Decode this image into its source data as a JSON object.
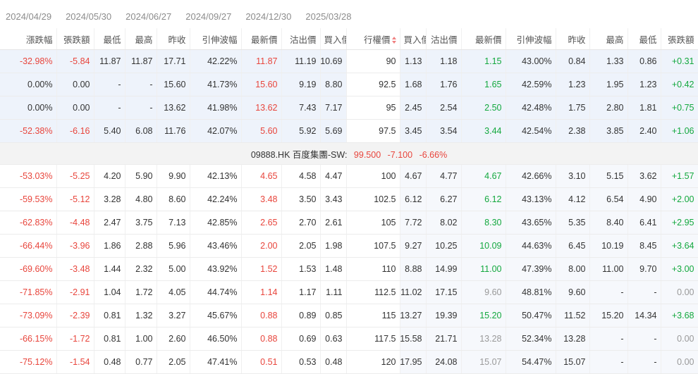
{
  "expiry_tabs": [
    "2024/04/29",
    "2024/05/30",
    "2024/06/27",
    "2024/09/27",
    "2024/12/30",
    "2025/03/28"
  ],
  "headers": {
    "call": [
      "漲跌幅",
      "張跌額",
      "最低",
      "最高",
      "昨收",
      "引伸波幅",
      "最新價",
      "沽出價",
      "買入價"
    ],
    "strike": "行權價",
    "put": [
      "買入價",
      "沽出價",
      "最新價",
      "引伸波幅",
      "昨收",
      "最高",
      "最低",
      "張跌額"
    ]
  },
  "spot": {
    "symbol": "09888.HK 百度集團-SW:",
    "price": "99.500",
    "change": "-7.100",
    "change_pct": "-6.66%"
  },
  "rows_above": [
    {
      "call": [
        "-32.98%",
        "-5.84",
        "11.87",
        "11.87",
        "17.71",
        "42.22%",
        "11.87",
        "11.19",
        "10.69"
      ],
      "strike": "90",
      "put": [
        "1.13",
        "1.18",
        "1.15",
        "43.00%",
        "0.84",
        "1.33",
        "0.86",
        "+0.31"
      ]
    },
    {
      "call": [
        "0.00%",
        "0.00",
        "-",
        "-",
        "15.60",
        "41.73%",
        "15.60",
        "9.19",
        "8.80"
      ],
      "strike": "92.5",
      "put": [
        "1.68",
        "1.76",
        "1.65",
        "42.59%",
        "1.23",
        "1.95",
        "1.23",
        "+0.42"
      ]
    },
    {
      "call": [
        "0.00%",
        "0.00",
        "-",
        "-",
        "13.62",
        "41.98%",
        "13.62",
        "7.43",
        "7.17"
      ],
      "strike": "95",
      "put": [
        "2.45",
        "2.54",
        "2.50",
        "42.48%",
        "1.75",
        "2.80",
        "1.81",
        "+0.75"
      ]
    },
    {
      "call": [
        "-52.38%",
        "-6.16",
        "5.40",
        "6.08",
        "11.76",
        "42.07%",
        "5.60",
        "5.92",
        "5.69"
      ],
      "strike": "97.5",
      "put": [
        "3.45",
        "3.54",
        "3.44",
        "42.54%",
        "2.38",
        "3.85",
        "2.40",
        "+1.06"
      ]
    }
  ],
  "rows_below": [
    {
      "call": [
        "-53.03%",
        "-5.25",
        "4.20",
        "5.90",
        "9.90",
        "42.13%",
        "4.65",
        "4.58",
        "4.47"
      ],
      "strike": "100",
      "put": [
        "4.67",
        "4.77",
        "4.67",
        "42.66%",
        "3.10",
        "5.15",
        "3.62",
        "+1.57"
      ]
    },
    {
      "call": [
        "-59.53%",
        "-5.12",
        "3.28",
        "4.80",
        "8.60",
        "42.24%",
        "3.48",
        "3.50",
        "3.43"
      ],
      "strike": "102.5",
      "put": [
        "6.12",
        "6.27",
        "6.12",
        "43.13%",
        "4.12",
        "6.54",
        "4.90",
        "+2.00"
      ]
    },
    {
      "call": [
        "-62.83%",
        "-4.48",
        "2.47",
        "3.75",
        "7.13",
        "42.85%",
        "2.65",
        "2.70",
        "2.61"
      ],
      "strike": "105",
      "put": [
        "7.72",
        "8.02",
        "8.30",
        "43.65%",
        "5.35",
        "8.40",
        "6.41",
        "+2.95"
      ]
    },
    {
      "call": [
        "-66.44%",
        "-3.96",
        "1.86",
        "2.88",
        "5.96",
        "43.46%",
        "2.00",
        "2.05",
        "1.98"
      ],
      "strike": "107.5",
      "put": [
        "9.27",
        "10.25",
        "10.09",
        "44.63%",
        "6.45",
        "10.19",
        "8.45",
        "+3.64"
      ]
    },
    {
      "call": [
        "-69.60%",
        "-3.48",
        "1.44",
        "2.32",
        "5.00",
        "43.92%",
        "1.52",
        "1.53",
        "1.48"
      ],
      "strike": "110",
      "put": [
        "8.88",
        "14.99",
        "11.00",
        "47.39%",
        "8.00",
        "11.00",
        "9.70",
        "+3.00"
      ]
    },
    {
      "call": [
        "-71.85%",
        "-2.91",
        "1.04",
        "1.72",
        "4.05",
        "44.74%",
        "1.14",
        "1.17",
        "1.11"
      ],
      "strike": "112.5",
      "put": [
        "11.02",
        "17.15",
        "9.60",
        "48.81%",
        "9.60",
        "-",
        "-",
        "0.00"
      ]
    },
    {
      "call": [
        "-73.09%",
        "-2.39",
        "0.81",
        "1.32",
        "3.27",
        "45.67%",
        "0.88",
        "0.89",
        "0.85"
      ],
      "strike": "115",
      "put": [
        "13.27",
        "19.39",
        "15.20",
        "50.47%",
        "11.52",
        "15.20",
        "14.34",
        "+3.68"
      ]
    },
    {
      "call": [
        "-66.15%",
        "-1.72",
        "0.81",
        "1.00",
        "2.60",
        "46.50%",
        "0.88",
        "0.69",
        "0.63"
      ],
      "strike": "117.5",
      "put": [
        "15.58",
        "21.71",
        "13.28",
        "52.34%",
        "13.28",
        "-",
        "-",
        "0.00"
      ]
    },
    {
      "call": [
        "-75.12%",
        "-1.54",
        "0.48",
        "0.77",
        "2.05",
        "47.41%",
        "0.51",
        "0.53",
        "0.48"
      ],
      "strike": "120",
      "put": [
        "17.95",
        "24.08",
        "15.07",
        "54.47%",
        "15.07",
        "-",
        "-",
        "0.00"
      ]
    }
  ],
  "colors": {
    "up": "#13a83e",
    "down": "#e8453c",
    "neutral": "#999999"
  }
}
